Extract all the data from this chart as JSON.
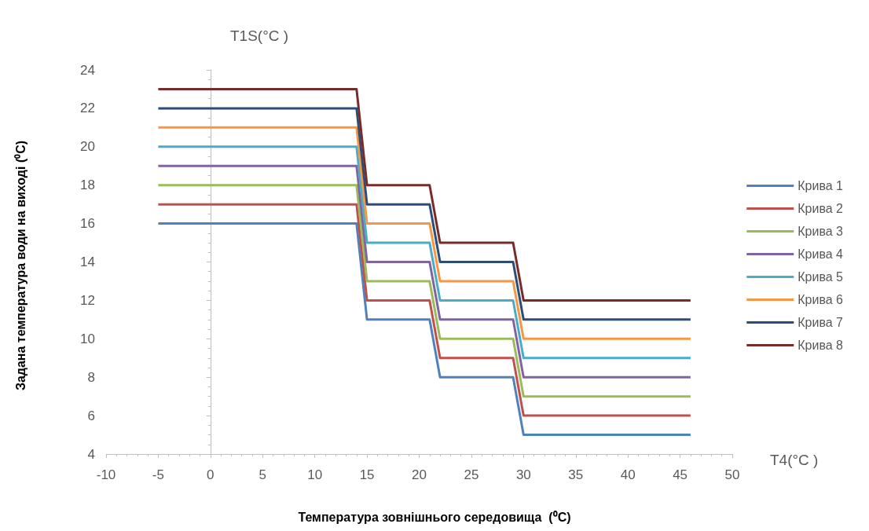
{
  "chart_data": {
    "type": "line",
    "xlabel": "Температура зовнішнього середовища  (⁰C)",
    "ylabel": "Задана температура води на виході (⁰C)",
    "annotations": [
      "T1S(°C )",
      "T4(°C )"
    ],
    "x": [
      -5,
      14,
      15,
      21,
      22,
      29,
      30,
      46
    ],
    "series": [
      {
        "name": "Крива 1",
        "color": "#4f81bd",
        "values": [
          16,
          16,
          11,
          11,
          8,
          8,
          5,
          5
        ]
      },
      {
        "name": "Крива 2",
        "color": "#c0504d",
        "values": [
          17,
          17,
          12,
          12,
          9,
          9,
          6,
          6
        ]
      },
      {
        "name": "Крива 3",
        "color": "#9bbb59",
        "values": [
          18,
          18,
          13,
          13,
          10,
          10,
          7,
          7
        ]
      },
      {
        "name": "Крива 4",
        "color": "#8064a2",
        "values": [
          19,
          19,
          14,
          14,
          11,
          11,
          8,
          8
        ]
      },
      {
        "name": "Крива 5",
        "color": "#4bacc6",
        "values": [
          20,
          20,
          15,
          15,
          12,
          12,
          9,
          9
        ]
      },
      {
        "name": "Крива 6",
        "color": "#f79646",
        "values": [
          21,
          21,
          16,
          16,
          13,
          13,
          10,
          10
        ]
      },
      {
        "name": "Крива 7",
        "color": "#2c4d75",
        "values": [
          22,
          22,
          17,
          17,
          14,
          14,
          11,
          11
        ]
      },
      {
        "name": "Крива 8",
        "color": "#772c2a",
        "values": [
          23,
          23,
          18,
          18,
          15,
          15,
          12,
          12
        ]
      }
    ],
    "xlim": [
      -10,
      50
    ],
    "xticks": [
      -10,
      -5,
      0,
      5,
      10,
      15,
      20,
      25,
      30,
      35,
      40,
      45,
      50
    ],
    "ylim": [
      4,
      24
    ],
    "yticks": [
      4,
      6,
      8,
      10,
      12,
      14,
      16,
      18,
      20,
      22,
      24
    ],
    "legend": "right",
    "marker": "none",
    "line_style": "solid"
  }
}
